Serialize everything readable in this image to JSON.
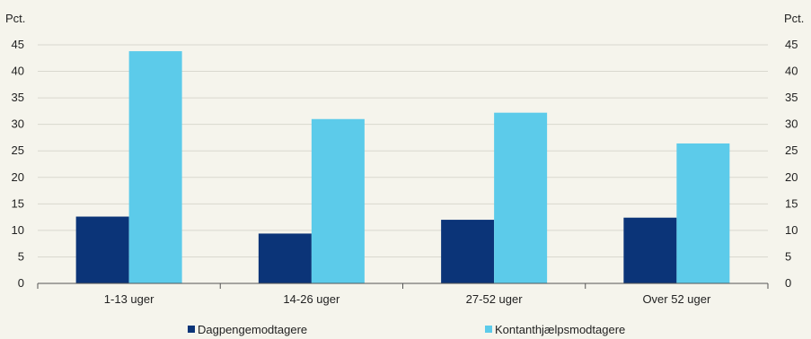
{
  "chart_data": {
    "type": "bar",
    "unit_left": "Pct.",
    "unit_right": "Pct.",
    "categories": [
      "1-13 uger",
      "14-26 uger",
      "27-52 uger",
      "Over 52 uger"
    ],
    "series": [
      {
        "name": "Dagpengemodtagere",
        "color": "#0b3478",
        "values": [
          12.6,
          9.4,
          12.0,
          12.4
        ]
      },
      {
        "name": "Kontanthjælpsmodtagere",
        "color": "#5ccbea",
        "values": [
          43.8,
          31.0,
          32.2,
          26.4
        ]
      }
    ],
    "ylim": [
      0,
      45
    ],
    "yticks": [
      0,
      5,
      10,
      15,
      20,
      25,
      30,
      35,
      40,
      45
    ],
    "grid": true,
    "legend_position": "bottom"
  }
}
